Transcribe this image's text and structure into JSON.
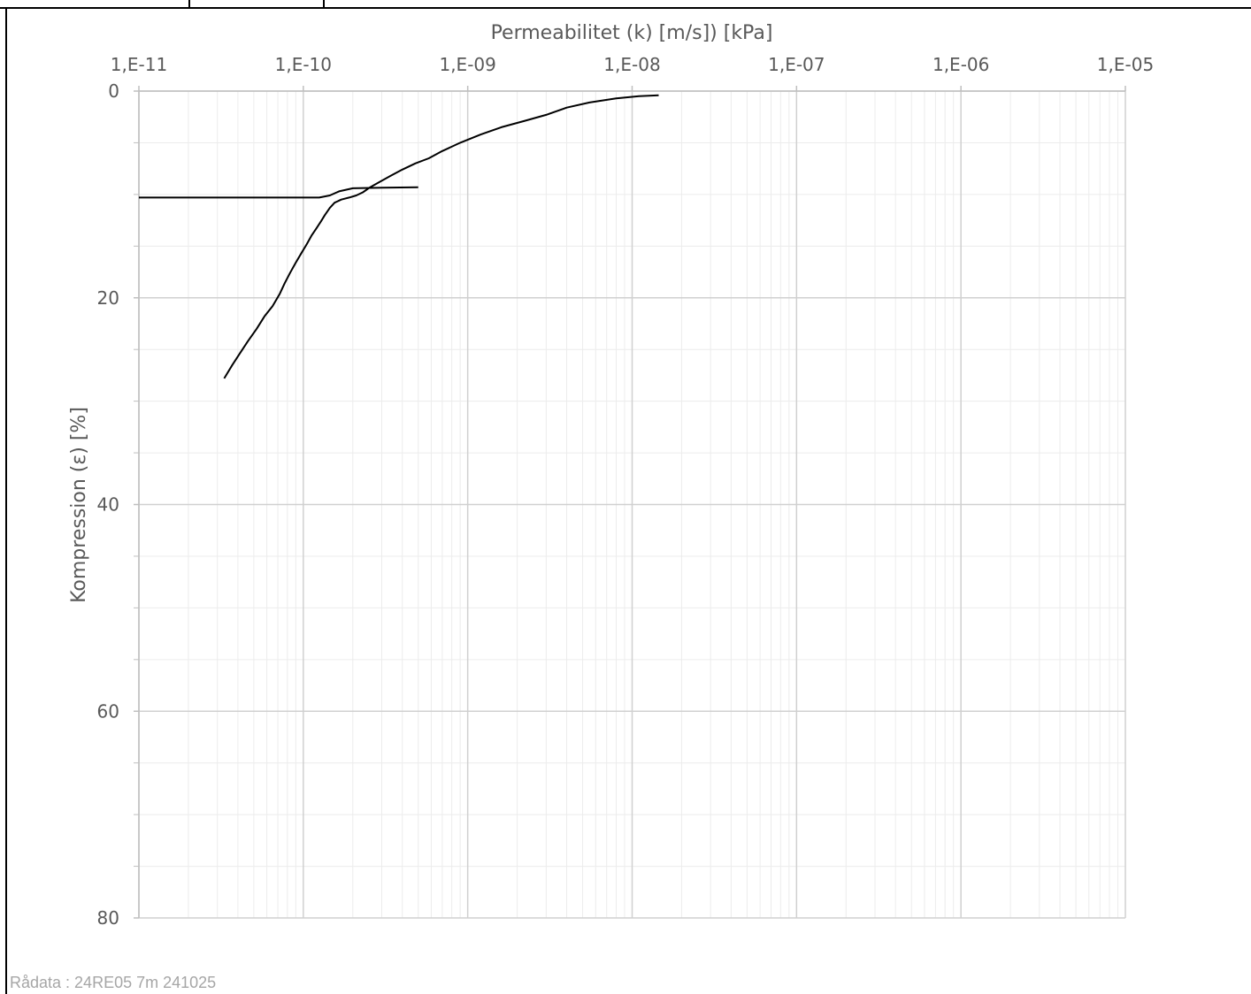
{
  "footer": {
    "source_note": "Rådata : 24RE05 7m 241025"
  },
  "chart_data": {
    "type": "line",
    "title": "",
    "xlabel": "Permeabilitet (k) [m/s]) [kPa]",
    "ylabel": "Kompression (ε) [%]",
    "x_scale": "log",
    "x_axis_position": "top",
    "y_inverted": true,
    "xlim": [
      1e-11,
      1e-05
    ],
    "ylim": [
      0,
      80
    ],
    "x_tick_labels": [
      "1,E-11",
      "1,E-10",
      "1,E-09",
      "1,E-08",
      "1,E-07",
      "1,E-06",
      "1,E-05"
    ],
    "y_tick_labels": [
      "0",
      "20",
      "40",
      "60",
      "80"
    ],
    "grid": true,
    "series_color": "#000000",
    "series": [
      {
        "name": "",
        "x": [
          1.45e-08,
          1.1e-08,
          8e-09,
          5.5e-09,
          4e-09,
          3e-09,
          2.2e-09,
          1.6e-09,
          1.2e-09,
          9e-10,
          7e-10,
          5.8e-10,
          4.8e-10,
          4e-10,
          3.4e-10,
          2.9e-10,
          2.55e-10,
          2.3e-10,
          2.1e-10,
          1.9e-10,
          1.7e-10,
          1.55e-10,
          1.45e-10,
          1.35e-10,
          1.28e-10,
          1.2e-10,
          1.12e-10,
          1.05e-10,
          9.8e-11,
          9e-11,
          8.3e-11,
          7.7e-11,
          7.2e-11,
          6.5e-11,
          5.8e-11,
          5.2e-11,
          4.6e-11,
          4.1e-11,
          3.7e-11,
          3.3e-11
        ],
        "y": [
          0.4,
          0.5,
          0.7,
          1.1,
          1.6,
          2.3,
          2.9,
          3.5,
          4.2,
          5.0,
          5.8,
          6.5,
          7.0,
          7.6,
          8.2,
          8.8,
          9.3,
          9.8,
          10.1,
          10.3,
          10.5,
          10.8,
          11.3,
          12.0,
          12.6,
          13.3,
          14.0,
          14.8,
          15.6,
          16.6,
          17.6,
          18.6,
          19.6,
          20.8,
          21.8,
          23.0,
          24.2,
          25.4,
          26.5,
          27.8
        ]
      },
      {
        "name": "",
        "x": [
          1e-11,
          1.25e-10,
          1.45e-10,
          1.65e-10,
          2e-10,
          3e-10,
          5e-10
        ],
        "y": [
          10.3,
          10.3,
          10.1,
          9.7,
          9.4,
          9.35,
          9.3
        ]
      }
    ]
  }
}
